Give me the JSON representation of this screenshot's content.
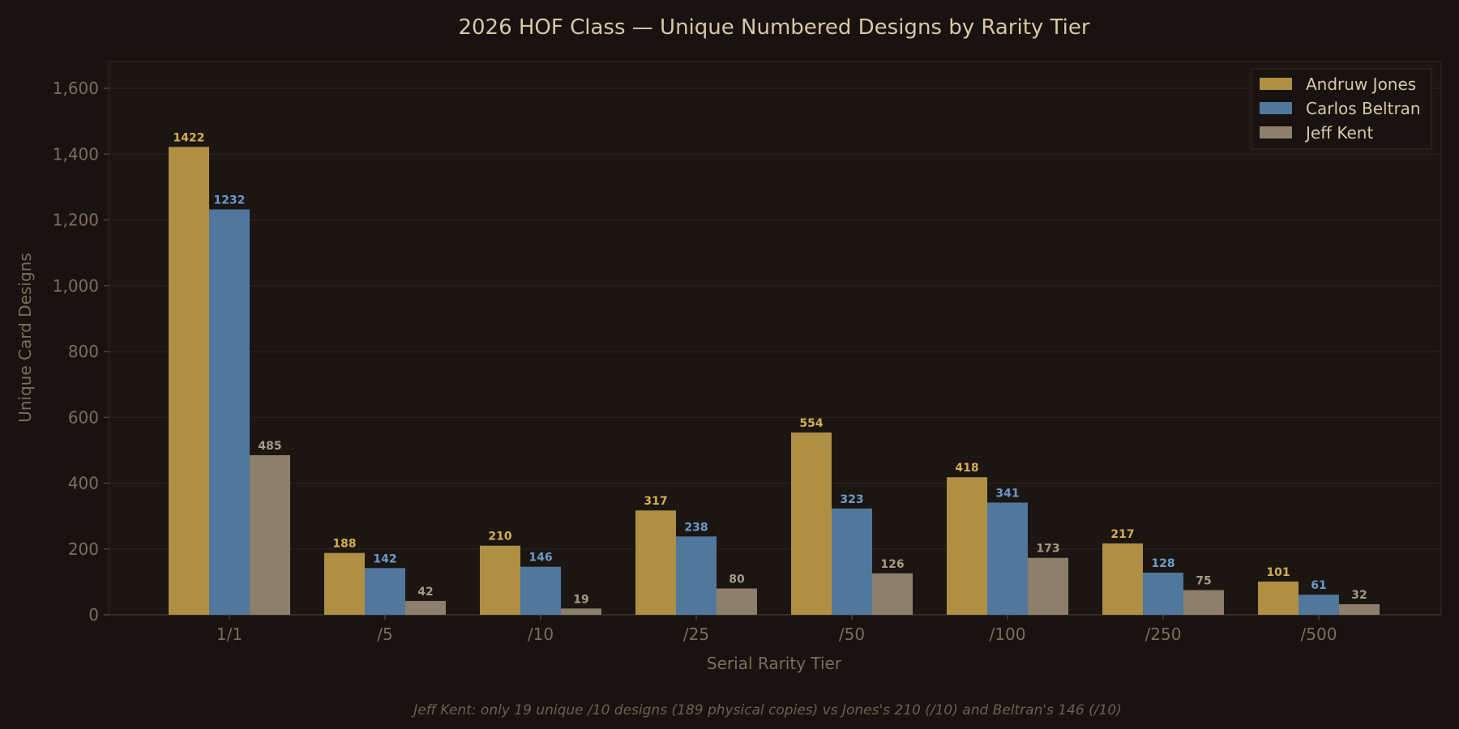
{
  "chart_data": {
    "type": "bar",
    "title": "2026 HOF Class — Unique Numbered Designs by Rarity Tier",
    "xlabel": "Serial Rarity Tier",
    "ylabel": "Unique Card Designs",
    "categories": [
      "1/1",
      "/5",
      "/10",
      "/25",
      "/50",
      "/100",
      "/250",
      "/500"
    ],
    "series": [
      {
        "name": "Andruw Jones",
        "color": "#ae8f43",
        "label_color": "#d5ae4e",
        "values": [
          1422,
          188,
          210,
          317,
          554,
          418,
          217,
          101
        ]
      },
      {
        "name": "Carlos Beltran",
        "color": "#51779c",
        "label_color": "#6a9acc",
        "values": [
          1232,
          142,
          146,
          238,
          323,
          341,
          128,
          61
        ]
      },
      {
        "name": "Jeff Kent",
        "color": "#8d7f6b",
        "label_color": "#a89a84",
        "values": [
          485,
          42,
          19,
          80,
          126,
          173,
          75,
          32
        ]
      }
    ],
    "ylim": [
      0,
      1680
    ],
    "yticks": [
      0,
      200,
      400,
      600,
      800,
      1000,
      1200,
      1400,
      1600
    ],
    "ytick_labels": [
      "0",
      "200",
      "400",
      "600",
      "800",
      "1,000",
      "1,200",
      "1,400",
      "1,600"
    ],
    "grid": true,
    "legend_position": "top-right",
    "annotation": "Jeff Kent: only 19 unique /10 designs (189 physical copies) vs Jones's 210 (/10) and Beltran's 146 (/10)"
  },
  "theme": {
    "background": "#181310",
    "plot_background": "#1b1612",
    "grid_color": "#2a231d",
    "axis_color": "#3a3128"
  }
}
